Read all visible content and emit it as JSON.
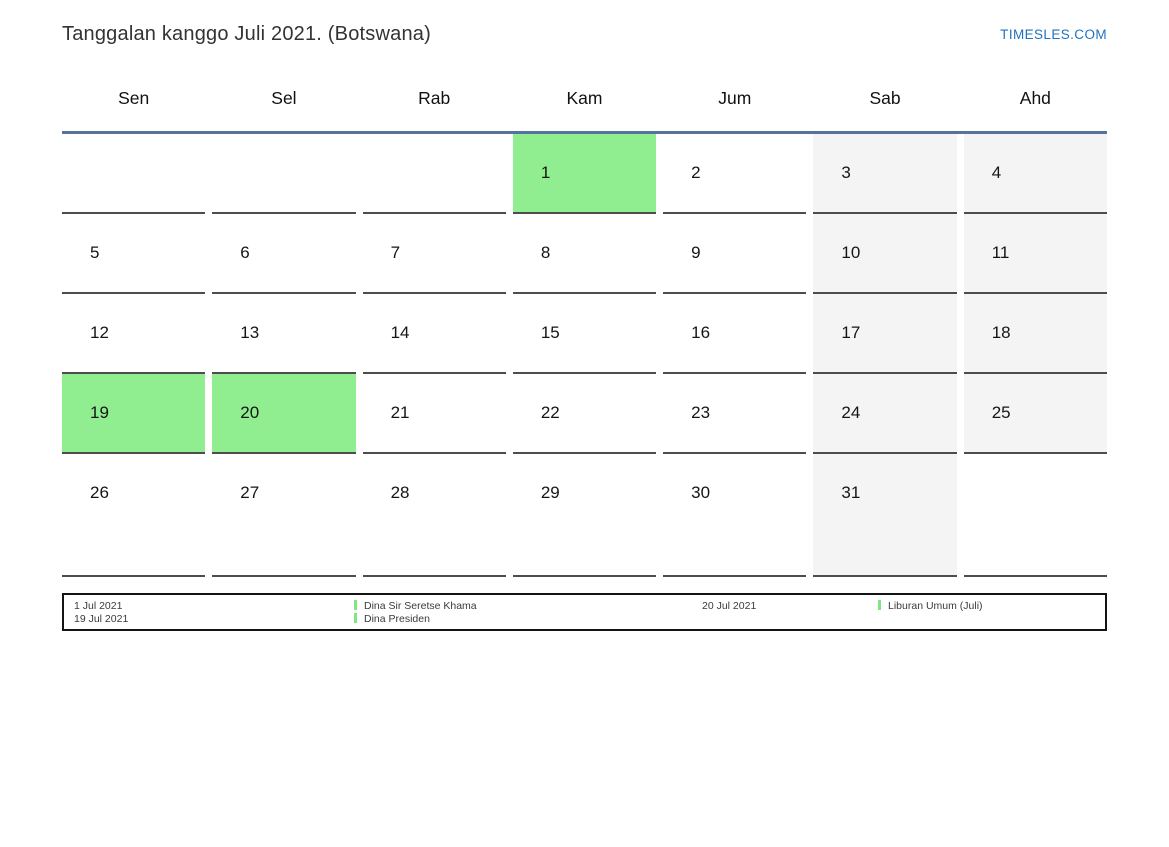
{
  "header": {
    "title": "Tanggalan kanggo Juli 2021. (Botswana)",
    "brand": "TIMESLES.COM"
  },
  "calendar": {
    "weekdays": [
      "Sen",
      "Sel",
      "Rab",
      "Kam",
      "Jum",
      "Sab",
      "Ahd"
    ],
    "rows": [
      [
        {
          "day": "",
          "type": "empty"
        },
        {
          "day": "",
          "type": "empty"
        },
        {
          "day": "",
          "type": "empty"
        },
        {
          "day": "1",
          "type": "holiday"
        },
        {
          "day": "2",
          "type": "normal"
        },
        {
          "day": "3",
          "type": "weekend"
        },
        {
          "day": "4",
          "type": "weekend"
        }
      ],
      [
        {
          "day": "5",
          "type": "normal"
        },
        {
          "day": "6",
          "type": "normal"
        },
        {
          "day": "7",
          "type": "normal"
        },
        {
          "day": "8",
          "type": "normal"
        },
        {
          "day": "9",
          "type": "normal"
        },
        {
          "day": "10",
          "type": "weekend"
        },
        {
          "day": "11",
          "type": "weekend"
        }
      ],
      [
        {
          "day": "12",
          "type": "normal"
        },
        {
          "day": "13",
          "type": "normal"
        },
        {
          "day": "14",
          "type": "normal"
        },
        {
          "day": "15",
          "type": "normal"
        },
        {
          "day": "16",
          "type": "normal"
        },
        {
          "day": "17",
          "type": "weekend"
        },
        {
          "day": "18",
          "type": "weekend"
        }
      ],
      [
        {
          "day": "19",
          "type": "holiday"
        },
        {
          "day": "20",
          "type": "holiday"
        },
        {
          "day": "21",
          "type": "normal"
        },
        {
          "day": "22",
          "type": "normal"
        },
        {
          "day": "23",
          "type": "normal"
        },
        {
          "day": "24",
          "type": "weekend"
        },
        {
          "day": "25",
          "type": "weekend"
        }
      ],
      [
        {
          "day": "26",
          "type": "normal"
        },
        {
          "day": "27",
          "type": "normal"
        },
        {
          "day": "28",
          "type": "normal"
        },
        {
          "day": "29",
          "type": "normal"
        },
        {
          "day": "30",
          "type": "normal"
        },
        {
          "day": "31",
          "type": "weekend"
        },
        {
          "day": "",
          "type": "empty"
        }
      ]
    ]
  },
  "legend": {
    "columns": [
      {
        "type": "dates",
        "lines": [
          "1 Jul 2021",
          "19 Jul 2021"
        ]
      },
      {
        "type": "holidays",
        "lines": [
          "Dina Sir Seretse Khama",
          "Dina Presiden"
        ]
      },
      {
        "type": "dates",
        "lines": [
          "20 Jul 2021"
        ]
      },
      {
        "type": "holidays",
        "lines": [
          "Liburan Umum (Juli)"
        ]
      }
    ]
  },
  "colors": {
    "holiday_green": "#90ee90",
    "weekend_gray": "#f4f4f4",
    "cell_border": "#4d4d4d",
    "header_line": "#54749e",
    "brand_blue": "#1e73be",
    "legend_bar_green": "#7fe77f"
  }
}
